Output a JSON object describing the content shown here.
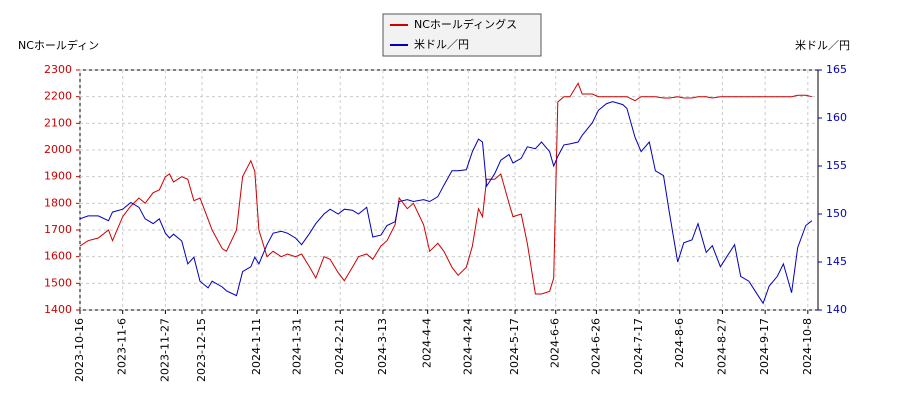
{
  "chart_data": {
    "type": "line",
    "y_label": "NCホールディン",
    "y2_label": "米ドル／円",
    "x": [
      "2023-10-16",
      "2023-10-20",
      "2023-10-25",
      "2023-10-30",
      "2023-11-1",
      "2023-11-6",
      "2023-11-10",
      "2023-11-14",
      "2023-11-17",
      "2023-11-21",
      "2023-11-24",
      "2023-11-27",
      "2023-11-29",
      "2023-12-1",
      "2023-12-5",
      "2023-12-8",
      "2023-12-11",
      "2023-12-14",
      "2023-12-18",
      "2023-12-20",
      "2023-12-25",
      "2023-12-27",
      "2024-1-1",
      "2024-1-4",
      "2024-1-8",
      "2024-1-10",
      "2024-1-12",
      "2024-1-16",
      "2024-1-19",
      "2024-1-23",
      "2024-1-26",
      "2024-1-30",
      "2024-2-2",
      "2024-2-6",
      "2024-2-9",
      "2024-2-13",
      "2024-2-16",
      "2024-2-20",
      "2024-2-23",
      "2024-2-27",
      "2024-3-1",
      "2024-3-5",
      "2024-3-8",
      "2024-3-12",
      "2024-3-15",
      "2024-3-19",
      "2024-3-21",
      "2024-3-25",
      "2024-3-28",
      "2024-4-2",
      "2024-4-5",
      "2024-4-9",
      "2024-4-12",
      "2024-4-16",
      "2024-4-19",
      "2024-4-23",
      "2024-4-26",
      "2024-4-29",
      "2024-5-1",
      "2024-5-3",
      "2024-5-7",
      "2024-5-10",
      "2024-5-14",
      "2024-5-16",
      "2024-5-20",
      "2024-5-23",
      "2024-5-27",
      "2024-5-30",
      "2024-6-3",
      "2024-6-5",
      "2024-6-7",
      "2024-6-10",
      "2024-6-13",
      "2024-6-17",
      "2024-6-19",
      "2024-6-24",
      "2024-6-27",
      "2024-7-1",
      "2024-7-4",
      "2024-7-9",
      "2024-7-11",
      "2024-7-15",
      "2024-7-18",
      "2024-7-22",
      "2024-7-25",
      "2024-7-29",
      "2024-8-1",
      "2024-8-5",
      "2024-8-8",
      "2024-8-12",
      "2024-8-15",
      "2024-8-19",
      "2024-8-22",
      "2024-8-26",
      "2024-8-29",
      "2024-9-2",
      "2024-9-5",
      "2024-9-9",
      "2024-9-12",
      "2024-9-16",
      "2024-9-19",
      "2024-9-23",
      "2024-9-26",
      "2024-9-30",
      "2024-10-3",
      "2024-10-7",
      "2024-10-10"
    ],
    "series": [
      {
        "name": "NCホールディングス",
        "color": "#cc0000",
        "axis": "y",
        "values": [
          1640,
          1660,
          1670,
          1700,
          1660,
          1750,
          1790,
          1820,
          1800,
          1840,
          1850,
          1900,
          1910,
          1880,
          1900,
          1890,
          1810,
          1820,
          1740,
          1700,
          1630,
          1620,
          1700,
          1900,
          1960,
          1920,
          1700,
          1600,
          1620,
          1600,
          1610,
          1600,
          1610,
          1560,
          1520,
          1600,
          1590,
          1540,
          1510,
          1560,
          1600,
          1610,
          1590,
          1640,
          1660,
          1720,
          1820,
          1780,
          1800,
          1720,
          1620,
          1650,
          1620,
          1560,
          1530,
          1560,
          1640,
          1780,
          1750,
          1890,
          1890,
          1910,
          1800,
          1750,
          1760,
          1650,
          1460,
          1460,
          1470,
          1520,
          2180,
          2200,
          2200,
          2250,
          2210,
          2210,
          2200,
          2200,
          2200,
          2200,
          2200,
          2185,
          2200,
          2200,
          2200,
          2195,
          2195,
          2200,
          2195,
          2195,
          2200,
          2200,
          2195,
          2200,
          2200,
          2200,
          2200,
          2200,
          2200,
          2200,
          2200,
          2200,
          2200,
          2200,
          2205,
          2205,
          2200
        ]
      },
      {
        "name": "米ドル／円",
        "color": "#0000bb",
        "axis": "y2",
        "values": [
          149.5,
          149.8,
          149.8,
          149.3,
          150.2,
          150.5,
          151.2,
          150.7,
          149.5,
          149,
          149.5,
          148,
          147.5,
          147.9,
          147.2,
          144.8,
          145.5,
          143,
          142.3,
          143,
          142.4,
          142,
          141.5,
          144,
          144.5,
          145.5,
          144.8,
          146.8,
          148,
          148.2,
          148,
          147.5,
          146.8,
          148,
          149,
          150,
          150.5,
          150,
          150.5,
          150.4,
          150,
          150.7,
          147.6,
          147.8,
          148.8,
          149.2,
          151.3,
          151.5,
          151.3,
          151.5,
          151.3,
          151.8,
          153,
          154.5,
          154.5,
          154.6,
          156.5,
          157.8,
          157.5,
          152.9,
          154.2,
          155.6,
          156.2,
          155.3,
          155.8,
          157,
          156.8,
          157.5,
          156.5,
          155,
          156,
          157.2,
          157.3,
          157.5,
          158.2,
          159.5,
          160.8,
          161.5,
          161.7,
          161.4,
          161,
          158,
          156.5,
          157.5,
          154.5,
          154,
          150,
          145,
          147,
          147.3,
          149,
          146,
          146.7,
          144.5,
          145.5,
          146.8,
          143.5,
          143,
          142,
          140.7,
          142.5,
          143.5,
          144.8,
          141.8,
          146.5,
          148.8,
          149.3
        ]
      }
    ],
    "xlim": [
      "2023-10-16",
      "2024-10-13"
    ],
    "xticks": [
      "2023-10-16",
      "2023-11-6",
      "2023-11-27",
      "2023-12-15",
      "2024-1-11",
      "2024-1-31",
      "2024-2-21",
      "2024-3-13",
      "2024-4-4",
      "2024-4-24",
      "2024-5-17",
      "2024-6-6",
      "2024-6-26",
      "2024-7-17",
      "2024-8-6",
      "2024-8-27",
      "2024-9-17",
      "2024-10-8"
    ],
    "ylim": [
      1400,
      2300
    ],
    "yticks": [
      1400,
      1500,
      1600,
      1700,
      1800,
      1900,
      2000,
      2100,
      2200,
      2300
    ],
    "y2lim": [
      140,
      165
    ],
    "y2ticks": [
      140,
      145,
      150,
      155,
      160,
      165
    ],
    "grid": true
  }
}
